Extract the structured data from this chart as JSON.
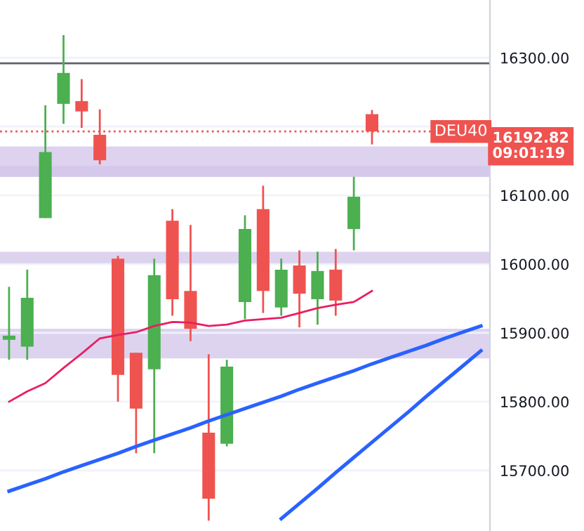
{
  "chart_data": {
    "type": "candlestick",
    "categories": [
      null,
      null,
      null,
      null,
      null,
      null,
      null,
      null,
      null,
      null,
      null,
      null,
      null,
      null,
      null,
      null,
      null,
      null,
      null,
      null,
      null,
      null,
      null,
      null,
      null,
      null,
      null
    ],
    "ohlc": [
      [
        15890,
        15967,
        15861,
        15896
      ],
      [
        15880,
        15992,
        15861,
        15951
      ],
      [
        16067,
        16231,
        16067,
        16163
      ],
      [
        16233,
        16333,
        16204,
        16278
      ],
      [
        16237,
        16269,
        16198,
        16222
      ],
      [
        16188,
        16225,
        16145,
        16151
      ],
      [
        16008,
        16012,
        15800,
        15839
      ],
      [
        15871,
        15871,
        15725,
        15790
      ],
      [
        15847,
        16008,
        15725,
        15984
      ],
      [
        16063,
        16080,
        15925,
        15949
      ],
      [
        15961,
        16057,
        15888,
        15906
      ],
      [
        15755,
        15869,
        15627,
        15659
      ],
      [
        15739,
        15861,
        15735,
        15851
      ],
      [
        15945,
        16071,
        15920,
        16051
      ],
      [
        16080,
        16114,
        15929,
        15961
      ],
      [
        15937,
        16008,
        15925,
        15992
      ],
      [
        15998,
        16020,
        15908,
        15957
      ],
      [
        15949,
        16018,
        15912,
        15990
      ],
      [
        15992,
        16022,
        15925,
        15947
      ],
      [
        16051,
        16127,
        16020,
        16098
      ],
      [
        16218,
        16224,
        16174,
        16192.82
      ],
      null,
      null,
      null,
      null,
      null,
      null
    ],
    "colors": [
      "#4caf50",
      "#4caf50",
      "#4caf50",
      "#4caf50",
      "#ef5350",
      "#ef5350",
      "#ef5350",
      "#ef5350",
      "#4caf50",
      "#ef5350",
      "#ef5350",
      "#ef5350",
      "#4caf50",
      "#4caf50",
      "#ef5350",
      "#4caf50",
      "#ef5350",
      "#4caf50",
      "#ef5350",
      "#4caf50",
      "#ef5350",
      null,
      null,
      null,
      null,
      null,
      null
    ],
    "series": [
      {
        "type": "line",
        "color": "#e91e63",
        "values": [
          15800,
          15815,
          15827,
          15849,
          15870,
          15892,
          15897,
          15901,
          15910,
          15916,
          15915,
          15910,
          15912,
          15918,
          15920,
          15922,
          15929,
          15936,
          15941,
          15945,
          15961,
          null,
          null,
          null,
          null,
          null,
          null
        ]
      },
      {
        "type": "line",
        "color": "#2962ff",
        "values": [
          15670,
          15679,
          15688,
          15698,
          15707,
          15716,
          15725,
          15735,
          15744,
          15753,
          15762,
          15772,
          15781,
          15790,
          15799,
          15808,
          15818,
          15827,
          15836,
          15845,
          15855,
          15864,
          15873,
          15882,
          15892,
          15901,
          15910
        ]
      },
      {
        "type": "line",
        "color": "#2962ff",
        "values": [
          null,
          null,
          null,
          null,
          null,
          null,
          null,
          null,
          null,
          null,
          null,
          null,
          null,
          null,
          null,
          15630,
          15652,
          15674,
          15697,
          15719,
          15741,
          15763,
          15785,
          15808,
          15830,
          15852,
          15874
        ]
      }
    ],
    "ylim": [
      15612,
      16384
    ],
    "yticks": [
      {
        "value": 15700,
        "label": "15700.00"
      },
      {
        "value": 15800,
        "label": "15800.00"
      },
      {
        "value": 15900,
        "label": "15900.00"
      },
      {
        "value": 16000,
        "label": "16000.00"
      },
      {
        "value": 16100,
        "label": "16100.00"
      },
      {
        "value": 16200,
        "label": null
      },
      {
        "value": 16300,
        "label": "16300.00"
      }
    ],
    "tick_labels": "y",
    "grid": "y",
    "ref_lines": [
      {
        "axis": "y",
        "value": 16292,
        "color": "#5d606b",
        "line_style": "solid"
      },
      {
        "axis": "y",
        "value": 16192.82,
        "label": "DEU40",
        "color": "#ef5350",
        "line_style": "dotted"
      }
    ],
    "bands": [
      {
        "axis": "y",
        "from": 16127,
        "to": 16143,
        "color": "#d1c4e9"
      },
      {
        "axis": "y",
        "from": 16127,
        "to": 16171,
        "color": "#d1c4e9"
      },
      {
        "axis": "y",
        "from": 16000,
        "to": 16018,
        "color": "#d1c4e9"
      },
      {
        "axis": "y",
        "from": 15863,
        "to": 15906,
        "color": "#d1c4e9"
      }
    ],
    "annotations": [
      "16192.82",
      "09:01:19"
    ]
  }
}
